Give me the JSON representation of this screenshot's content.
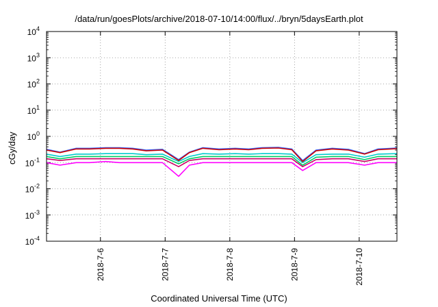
{
  "chart_data": {
    "type": "line",
    "title": "/data/run/goesPlots/archive/2018-07-10/14:00/flux/../bryn/5daysEarth.plot",
    "xlabel": "Coordinated Universal Time (UTC)",
    "ylabel": "cGy/day",
    "yscale": "log",
    "ylim": [
      0.0001,
      10000
    ],
    "y_ticks": [
      {
        "base": "10",
        "exp": "-4"
      },
      {
        "base": "10",
        "exp": "-3"
      },
      {
        "base": "10",
        "exp": "-2"
      },
      {
        "base": "10",
        "exp": "-1"
      },
      {
        "base": "10",
        "exp": "0"
      },
      {
        "base": "10",
        "exp": "1"
      },
      {
        "base": "10",
        "exp": "2"
      },
      {
        "base": "10",
        "exp": "3"
      },
      {
        "base": "10",
        "exp": "4"
      }
    ],
    "xlim": [
      "2018-07-05T04:00",
      "2018-07-10T14:00"
    ],
    "x_ticks": [
      "2018-7-6",
      "2018-7-7",
      "2018-7-8",
      "2018-7-9",
      "2018-7-10"
    ],
    "grid": true,
    "series_x_days": [
      "2018-07-05T04:00",
      "2018-07-05T09:00",
      "2018-07-05T15:00",
      "2018-07-05T20:00",
      "2018-07-06T02:00",
      "2018-07-06T07:00",
      "2018-07-06T12:00",
      "2018-07-06T17:00",
      "2018-07-06T23:00",
      "2018-07-07T05:00",
      "2018-07-07T09:00",
      "2018-07-07T14:00",
      "2018-07-07T20:00",
      "2018-07-08T02:00",
      "2018-07-08T07:00",
      "2018-07-08T12:00",
      "2018-07-08T18:00",
      "2018-07-08T23:00",
      "2018-07-09T03:00",
      "2018-07-09T08:00",
      "2018-07-09T14:00",
      "2018-07-09T20:00",
      "2018-07-10T02:00",
      "2018-07-10T07:00",
      "2018-07-10T14:00"
    ],
    "series": [
      {
        "color": "#ff00ff",
        "values": [
          0.1,
          0.08,
          0.1,
          0.1,
          0.11,
          0.1,
          0.1,
          0.1,
          0.1,
          0.03,
          0.08,
          0.1,
          0.1,
          0.1,
          0.1,
          0.1,
          0.1,
          0.1,
          0.05,
          0.1,
          0.1,
          0.1,
          0.08,
          0.1,
          0.1
        ]
      },
      {
        "color": "#cc0066",
        "values": [
          0.14,
          0.12,
          0.14,
          0.14,
          0.14,
          0.14,
          0.14,
          0.14,
          0.14,
          0.07,
          0.12,
          0.14,
          0.14,
          0.14,
          0.14,
          0.14,
          0.14,
          0.14,
          0.07,
          0.13,
          0.14,
          0.14,
          0.11,
          0.14,
          0.14
        ]
      },
      {
        "color": "#00cc66",
        "values": [
          0.17,
          0.14,
          0.17,
          0.17,
          0.17,
          0.17,
          0.17,
          0.17,
          0.17,
          0.09,
          0.14,
          0.17,
          0.17,
          0.17,
          0.17,
          0.17,
          0.17,
          0.17,
          0.08,
          0.16,
          0.17,
          0.17,
          0.13,
          0.17,
          0.17
        ]
      },
      {
        "color": "#00cccc",
        "values": [
          0.21,
          0.17,
          0.21,
          0.21,
          0.22,
          0.22,
          0.22,
          0.2,
          0.21,
          0.11,
          0.17,
          0.22,
          0.21,
          0.22,
          0.21,
          0.22,
          0.22,
          0.21,
          0.1,
          0.2,
          0.21,
          0.21,
          0.16,
          0.21,
          0.22
        ]
      },
      {
        "color": "#3366ff",
        "values": [
          0.32,
          0.25,
          0.35,
          0.35,
          0.37,
          0.37,
          0.35,
          0.3,
          0.32,
          0.13,
          0.25,
          0.37,
          0.33,
          0.35,
          0.33,
          0.37,
          0.38,
          0.33,
          0.12,
          0.3,
          0.35,
          0.32,
          0.22,
          0.33,
          0.36
        ]
      },
      {
        "color": "#cc0000",
        "values": [
          0.3,
          0.24,
          0.33,
          0.33,
          0.35,
          0.35,
          0.33,
          0.28,
          0.3,
          0.12,
          0.24,
          0.35,
          0.31,
          0.33,
          0.31,
          0.35,
          0.36,
          0.31,
          0.11,
          0.28,
          0.33,
          0.3,
          0.21,
          0.31,
          0.34
        ]
      }
    ]
  }
}
